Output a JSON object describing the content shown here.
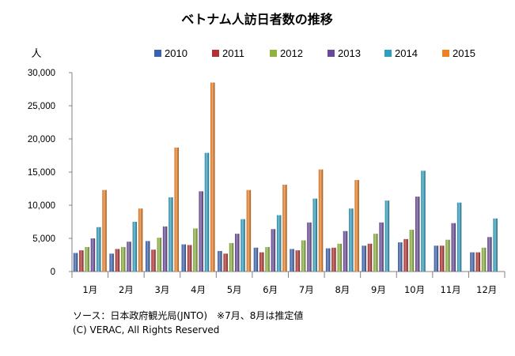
{
  "chart_data": {
    "type": "bar",
    "title": "ベトナム人訪日者数の推移",
    "ylabel": "人",
    "xlabel": "",
    "ylim": [
      0,
      30000
    ],
    "yticks": [
      0,
      5000,
      10000,
      15000,
      20000,
      25000,
      30000
    ],
    "ytick_labels": [
      "0",
      "5,000",
      "10,000",
      "15,000",
      "20,000",
      "25,000",
      "30,000"
    ],
    "grid": false,
    "legend_position": "top",
    "categories": [
      "1月",
      "2月",
      "3月",
      "4月",
      "5月",
      "6月",
      "7月",
      "8月",
      "9月",
      "10月",
      "11月",
      "12月"
    ],
    "series": [
      {
        "name": "2010",
        "color": "#3a62b0",
        "values": [
          2800,
          2700,
          4600,
          4100,
          3100,
          3600,
          3400,
          3500,
          3900,
          4400,
          3900,
          2900
        ]
      },
      {
        "name": "2011",
        "color": "#b53030",
        "values": [
          3200,
          3400,
          3300,
          4000,
          2700,
          2900,
          3200,
          3600,
          4200,
          4900,
          3900,
          2900
        ]
      },
      {
        "name": "2012",
        "color": "#8eb33f",
        "values": [
          3700,
          3700,
          5100,
          6500,
          4300,
          3700,
          4700,
          4200,
          5700,
          6300,
          4800,
          3600
        ]
      },
      {
        "name": "2013",
        "color": "#6a4a98",
        "values": [
          5000,
          4500,
          6800,
          12100,
          5700,
          6400,
          7400,
          6100,
          7400,
          11300,
          7300,
          5200
        ]
      },
      {
        "name": "2014",
        "color": "#2f9fc0",
        "values": [
          6700,
          7500,
          11200,
          17900,
          7900,
          8500,
          11000,
          9500,
          10700,
          15200,
          10400,
          8000
        ]
      },
      {
        "name": "2015",
        "color": "#f07f22",
        "values": [
          12300,
          9500,
          18700,
          28500,
          12300,
          13100,
          15400,
          13800,
          null,
          null,
          null,
          null
        ]
      }
    ]
  },
  "notes": {
    "source": "ソース：日本政府観光局(JNTO)　※7月、8月は推定値",
    "copyright": "(C) VERAC, All Rights Reserved"
  }
}
